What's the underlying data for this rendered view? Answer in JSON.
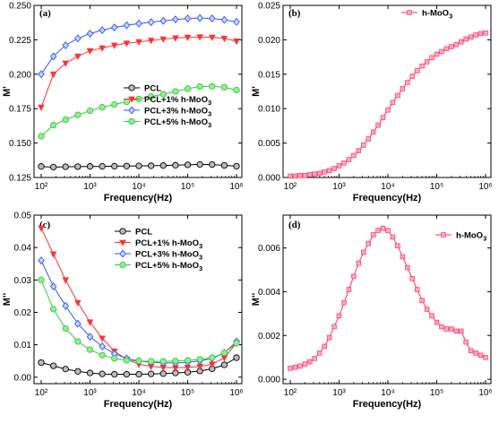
{
  "chart_data": [
    {
      "type": "line",
      "panel_label": "(a)",
      "xlabel": "Frequency(Hz)",
      "ylabel": "M'",
      "xscale": "log",
      "xlim": [
        100,
        1000000
      ],
      "ylim": [
        0.125,
        0.25
      ],
      "yticks": [
        "0.125",
        "0.150",
        "0.175",
        "0.200",
        "0.225",
        "0.250"
      ],
      "xticks": [
        "10²",
        "10³",
        "10⁴",
        "10⁵",
        "10⁶"
      ],
      "legend": "center-left",
      "x": [
        100,
        178,
        316,
        562,
        1000,
        1778,
        3162,
        5623,
        10000,
        17783,
        31623,
        56234,
        100000,
        177828,
        316228,
        562341,
        1000000
      ],
      "series": [
        {
          "name": "PCL",
          "color": "#000000",
          "marker": "circle",
          "values": [
            0.133,
            0.1325,
            0.1328,
            0.1329,
            0.133,
            0.1331,
            0.1332,
            0.1333,
            0.1334,
            0.1335,
            0.1337,
            0.1339,
            0.1342,
            0.1345,
            0.1344,
            0.1338,
            0.1332
          ]
        },
        {
          "name": "PCL+1% h-MoO",
          "sub": "3",
          "color": "#ff3333",
          "marker": "triangle-down",
          "values": [
            0.176,
            0.2,
            0.208,
            0.213,
            0.217,
            0.219,
            0.221,
            0.2225,
            0.2235,
            0.2245,
            0.2255,
            0.2263,
            0.2268,
            0.227,
            0.2268,
            0.226,
            0.224
          ]
        },
        {
          "name": "PCL+3% h-MoO",
          "sub": "3",
          "color": "#3355ff",
          "marker": "diamond",
          "values": [
            0.2,
            0.213,
            0.221,
            0.226,
            0.2295,
            0.232,
            0.234,
            0.2355,
            0.2368,
            0.2378,
            0.2388,
            0.2398,
            0.2405,
            0.2408,
            0.2405,
            0.2395,
            0.238
          ]
        },
        {
          "name": "PCL+5% h-MoO",
          "sub": "3",
          "color": "#33cc33",
          "marker": "circle-half",
          "values": [
            0.155,
            0.163,
            0.167,
            0.1705,
            0.1735,
            0.176,
            0.178,
            0.18,
            0.182,
            0.1838,
            0.1855,
            0.1875,
            0.1895,
            0.191,
            0.1912,
            0.1905,
            0.1885
          ]
        }
      ]
    },
    {
      "type": "line",
      "panel_label": "(b)",
      "xlabel": "Frequency(Hz)",
      "ylabel": "M'",
      "xscale": "log",
      "xlim": [
        100,
        1000000
      ],
      "ylim": [
        0,
        0.025
      ],
      "yticks": [
        "0.000",
        "0.005",
        "0.010",
        "0.015",
        "0.020",
        "0.025"
      ],
      "xticks": [
        "10²",
        "10³",
        "10⁴",
        "10⁵",
        "10⁶"
      ],
      "legend": "top-right",
      "x": [
        100,
        126,
        158,
        200,
        251,
        316,
        398,
        501,
        631,
        794,
        1000,
        1259,
        1585,
        1995,
        2512,
        3162,
        3981,
        5012,
        6310,
        7943,
        10000,
        12589,
        15849,
        19953,
        25119,
        31623,
        39811,
        50119,
        63096,
        79433,
        100000,
        125893,
        158489,
        199526,
        251189,
        316228,
        398107,
        501187,
        630957,
        794328,
        1000000
      ],
      "series": [
        {
          "name": "h-MoO",
          "sub": "3",
          "color": "#ff3366",
          "marker": "square",
          "values": [
            0.0002,
            0.0002,
            0.0003,
            0.0003,
            0.0004,
            0.0005,
            0.0006,
            0.0008,
            0.001,
            0.0013,
            0.0017,
            0.0021,
            0.0026,
            0.0032,
            0.0039,
            0.0047,
            0.0056,
            0.0066,
            0.0076,
            0.0087,
            0.0098,
            0.0109,
            0.0119,
            0.0129,
            0.0138,
            0.0147,
            0.0155,
            0.0162,
            0.0168,
            0.0174,
            0.0179,
            0.0183,
            0.0187,
            0.019,
            0.0193,
            0.0197,
            0.0201,
            0.0204,
            0.0207,
            0.0209,
            0.021
          ]
        }
      ]
    },
    {
      "type": "line",
      "panel_label": "(c)",
      "xlabel": "Frequency(Hz)",
      "ylabel": "M''",
      "xscale": "log",
      "xlim": [
        100,
        1000000
      ],
      "ylim": [
        -0.002,
        0.05
      ],
      "yticks": [
        "0.00",
        "0.01",
        "0.02",
        "0.03",
        "0.04",
        "0.05"
      ],
      "xticks": [
        "10²",
        "10³",
        "10⁴",
        "10⁵",
        "10⁶"
      ],
      "legend": "top-right",
      "x": [
        100,
        178,
        316,
        562,
        1000,
        1778,
        3162,
        5623,
        10000,
        17783,
        31623,
        56234,
        100000,
        177828,
        316228,
        562341,
        1000000
      ],
      "series": [
        {
          "name": "PCL",
          "color": "#000000",
          "marker": "circle",
          "values": [
            0.0045,
            0.0035,
            0.0025,
            0.0018,
            0.0013,
            0.001,
            0.0009,
            0.0009,
            0.0009,
            0.001,
            0.0011,
            0.0013,
            0.0015,
            0.0019,
            0.0026,
            0.0038,
            0.006
          ]
        },
        {
          "name": "PCL+1% h-MoO",
          "sub": "3",
          "color": "#ff3333",
          "marker": "triangle-down",
          "values": [
            0.046,
            0.038,
            0.03,
            0.023,
            0.017,
            0.012,
            0.008,
            0.0055,
            0.004,
            0.0033,
            0.003,
            0.0029,
            0.003,
            0.0033,
            0.004,
            0.006,
            0.0105
          ]
        },
        {
          "name": "PCL+3% h-MoO",
          "sub": "3",
          "color": "#3355ff",
          "marker": "diamond",
          "values": [
            0.036,
            0.028,
            0.022,
            0.0165,
            0.0125,
            0.0095,
            0.0072,
            0.0058,
            0.005,
            0.0046,
            0.0044,
            0.0044,
            0.0046,
            0.005,
            0.0058,
            0.0075,
            0.011
          ]
        },
        {
          "name": "PCL+5% h-MoO",
          "sub": "3",
          "color": "#33cc33",
          "marker": "circle-half",
          "values": [
            0.03,
            0.021,
            0.015,
            0.011,
            0.0085,
            0.0068,
            0.0058,
            0.0052,
            0.005,
            0.0049,
            0.0049,
            0.005,
            0.0052,
            0.0055,
            0.006,
            0.0075,
            0.0105
          ]
        }
      ]
    },
    {
      "type": "line",
      "panel_label": "(d)",
      "xlabel": "Frequency(Hz)",
      "ylabel": "M''",
      "xscale": "log",
      "xlim": [
        100,
        1000000
      ],
      "ylim": [
        -0.0002,
        0.0075
      ],
      "yticks": [
        "0.000",
        "0.002",
        "0.004",
        "0.006"
      ],
      "xticks": [
        "10²",
        "10³",
        "10⁴",
        "10⁵",
        "10⁶"
      ],
      "legend": "top-right",
      "x": [
        100,
        126,
        158,
        200,
        251,
        316,
        398,
        501,
        631,
        794,
        1000,
        1259,
        1585,
        1995,
        2512,
        3162,
        3981,
        5012,
        6310,
        7943,
        10000,
        12589,
        15849,
        19953,
        25119,
        31623,
        39811,
        50119,
        63096,
        79433,
        100000,
        125893,
        158489,
        199526,
        251189,
        316228,
        398107,
        501187,
        630957,
        794328,
        1000000
      ],
      "series": [
        {
          "name": "h-MoO",
          "sub": "3",
          "color": "#ff3366",
          "marker": "square",
          "values": [
            0.0005,
            0.00055,
            0.0006,
            0.0007,
            0.0008,
            0.00095,
            0.0012,
            0.0015,
            0.0019,
            0.0024,
            0.0029,
            0.0035,
            0.0041,
            0.0047,
            0.0053,
            0.0058,
            0.0062,
            0.0066,
            0.0068,
            0.0069,
            0.0068,
            0.0065,
            0.0061,
            0.0056,
            0.0051,
            0.0046,
            0.0041,
            0.0036,
            0.0032,
            0.0029,
            0.0026,
            0.0024,
            0.0023,
            0.0023,
            0.0022,
            0.0022,
            0.0017,
            0.0013,
            0.0012,
            0.0011,
            0.001
          ]
        }
      ]
    }
  ]
}
